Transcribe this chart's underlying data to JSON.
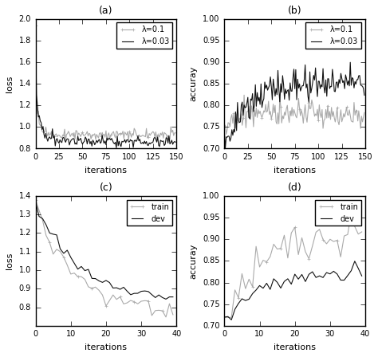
{
  "fig_width": 4.74,
  "fig_height": 4.48,
  "dpi": 100,
  "subplots": {
    "a": {
      "title": "(a)",
      "xlabel": "iterations",
      "ylabel": "loss",
      "xlim": [
        0,
        150
      ],
      "ylim": [
        0.8,
        2.0
      ],
      "yticks": [
        0.8,
        1.0,
        1.2,
        1.4,
        1.6,
        1.8,
        2.0
      ],
      "xticks": [
        0,
        25,
        50,
        75,
        100,
        125,
        150
      ],
      "legend": [
        "λ=0.1",
        "λ=0.03"
      ],
      "n": 150
    },
    "b": {
      "title": "(b)",
      "xlabel": "iterations",
      "ylabel": "accuray",
      "xlim": [
        0,
        150
      ],
      "ylim": [
        0.7,
        1.0
      ],
      "yticks": [
        0.7,
        0.75,
        0.8,
        0.85,
        0.9,
        0.95,
        1.0
      ],
      "xticks": [
        0,
        25,
        50,
        75,
        100,
        125,
        150
      ],
      "legend": [
        "λ=0.1",
        "λ=0.03"
      ],
      "n": 150
    },
    "c": {
      "title": "(c)",
      "xlabel": "iterations",
      "ylabel": "loss",
      "xlim": [
        0,
        40
      ],
      "ylim": [
        0.7,
        1.4
      ],
      "yticks": [
        0.8,
        0.9,
        1.0,
        1.1,
        1.2,
        1.3,
        1.4
      ],
      "xticks": [
        0,
        10,
        20,
        30,
        40
      ],
      "legend": [
        "train",
        "dev"
      ],
      "n": 40
    },
    "d": {
      "title": "(d)",
      "xlabel": "iterations",
      "ylabel": "accuray",
      "xlim": [
        0,
        40
      ],
      "ylim": [
        0.7,
        1.0
      ],
      "yticks": [
        0.7,
        0.75,
        0.8,
        0.85,
        0.9,
        0.95,
        1.0
      ],
      "xticks": [
        0,
        10,
        20,
        30,
        40
      ],
      "legend": [
        "train",
        "dev"
      ],
      "n": 40
    }
  },
  "color_gray": "#aaaaaa",
  "color_black": "#111111",
  "linewidth": 0.8,
  "legend_fontsize": 7,
  "axis_label_fontsize": 8,
  "title_fontsize": 9,
  "tick_fontsize": 7
}
